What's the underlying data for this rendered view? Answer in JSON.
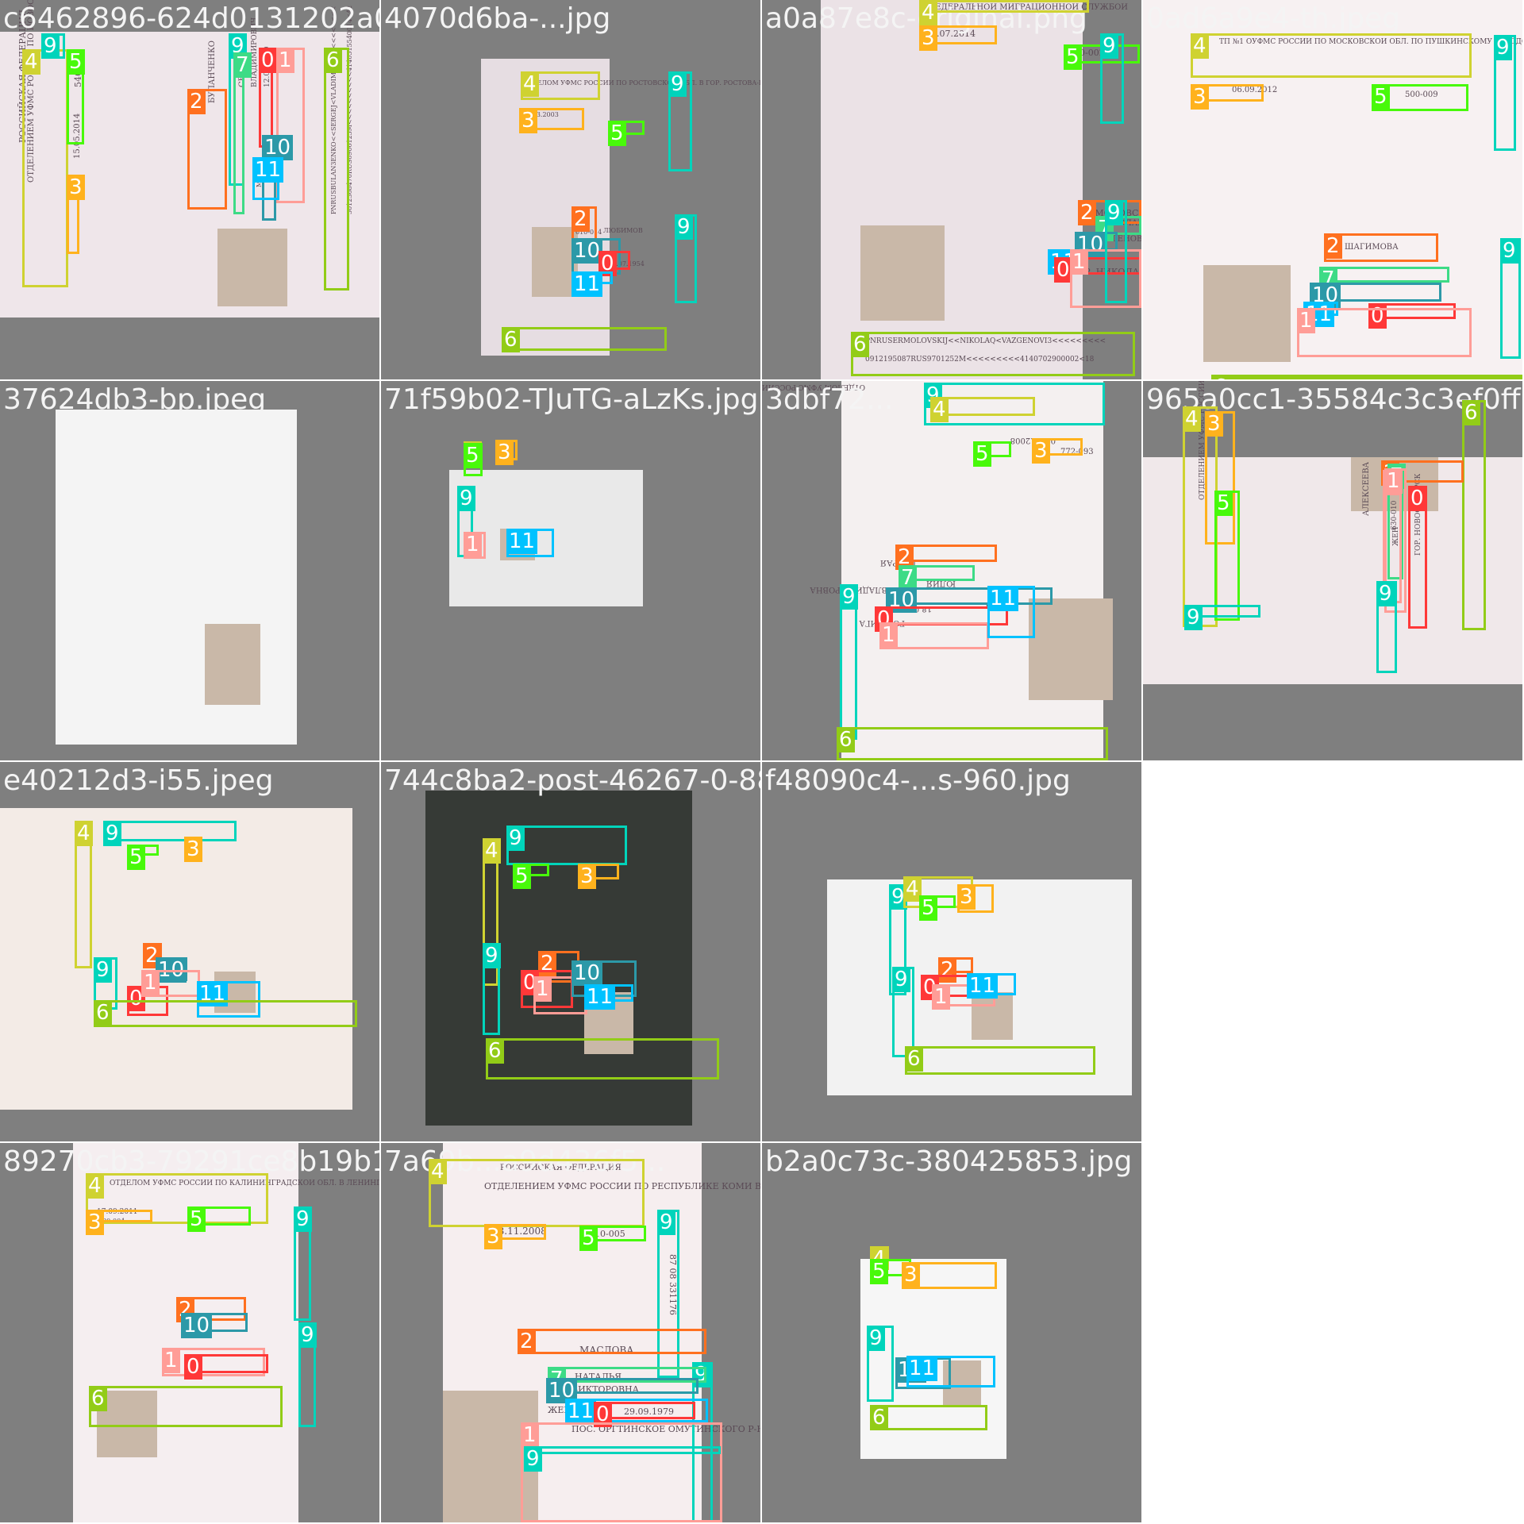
{
  "class_colors": {
    "0": "#ff3838",
    "1": "#ff9d97",
    "2": "#ff701f",
    "3": "#ffb21d",
    "4": "#cfd231",
    "5": "#48f90a",
    "6": "#92cc17",
    "7": "#3ddb86",
    "9": "#00d4bb",
    "10": "#2c99a8",
    "11": "#00c2ff"
  },
  "tiles": [
    {
      "filename": "c6462896-624d0131202a03447067e13e26250083.jpg",
      "doc_text": [
        "РОССИЙСКАЯ ФЕДЕРАЦИЯ",
        "ОТДЕЛЕНИЕМ УФМС РОССИИ ПО НОВОСИБИРСКОЙ ОБЛАСТИ В ГОРОДЕ БЕРДСКЕ",
        "15.05.2014",
        "540-014",
        "БУЛАНЧЕНКО",
        "СЕРГЕЙ",
        "ВЛАДИМИРОВИЧ",
        "12.06.1969",
        "МУЖ.",
        "PNRUSBULAN3ENKO<<SERGEJ<VLADIMIROVI3<<<<<<<<",
        "5012368470RUS6906125M<<<<<<<<<<4140515540014<42"
      ],
      "boxes": [
        {
          "cls": "4",
          "label": "4"
        },
        {
          "cls": "9",
          "label": "9"
        },
        {
          "cls": "5",
          "label": "5"
        },
        {
          "cls": "3",
          "label": "3"
        },
        {
          "cls": "2",
          "label": "2"
        },
        {
          "cls": "9",
          "label": "9"
        },
        {
          "cls": "7",
          "label": "7"
        },
        {
          "cls": "0",
          "label": "0"
        },
        {
          "cls": "1",
          "label": "1"
        },
        {
          "cls": "10",
          "label": "10"
        },
        {
          "cls": "11",
          "label": "11"
        },
        {
          "cls": "6",
          "label": "6"
        }
      ]
    },
    {
      "filename": "4070d6ba-...jpg",
      "doc_text": [
        "ОТДЕЛОМ УФМС РОССИИ ПО РОСТОВСКОЙ ОБЛ. В ГОР. РОСТОВА-НА-ДОНУ",
        "24.03.2003",
        "610-014",
        "ЛЮБИМОВ",
        "10.07.1954"
      ],
      "boxes": [
        {
          "cls": "4",
          "label": "4"
        },
        {
          "cls": "3",
          "label": "3"
        },
        {
          "cls": "5",
          "label": "5"
        },
        {
          "cls": "9",
          "label": "9"
        },
        {
          "cls": "2",
          "label": "2"
        },
        {
          "cls": "9",
          "label": "9"
        },
        {
          "cls": "10",
          "label": "10"
        },
        {
          "cls": "0",
          "label": "0"
        },
        {
          "cls": "11",
          "label": "11"
        },
        {
          "cls": "6",
          "label": "6"
        }
      ]
    },
    {
      "filename": "a0a87e8c-original.png",
      "doc_text": [
        "ФЕДЕРАЛЬНОЙ МИГРАЦИОННОЙ СЛУЖБОЙ",
        "02.07.2014",
        "900-002",
        "ЕРМОЛОВСКИЙ",
        "НИКОЛАЙ",
        "ВАЗГЕНОВИЧ",
        "МУЖ.",
        "ГОР. НИКОЛАЕВ НИКОЛАЕВСКОЙ ОБЛ.",
        "PNRUSERMOLOVSKIJ<<NIKOLAQ<VAZGENOVI3<<<<<<<<<",
        "0912195087RUS9701252M<<<<<<<<<4140702900002<18"
      ],
      "boxes": [
        {
          "cls": "4",
          "label": "4"
        },
        {
          "cls": "3",
          "label": "3"
        },
        {
          "cls": "5",
          "label": "5"
        },
        {
          "cls": "9",
          "label": "9"
        },
        {
          "cls": "2",
          "label": "2"
        },
        {
          "cls": "7",
          "label": "7"
        },
        {
          "cls": "10",
          "label": "10"
        },
        {
          "cls": "11",
          "label": "11"
        },
        {
          "cls": "0",
          "label": "0"
        },
        {
          "cls": "1",
          "label": "1"
        },
        {
          "cls": "9",
          "label": "9"
        },
        {
          "cls": "6",
          "label": "6"
        }
      ]
    },
    {
      "filename": "0ad6a9e4-th.jpeg",
      "doc_text": [
        "ТП №1 ОУФМС РОССИИ ПО МОСКОВСКОЙ ОБЛ. ПО ПУШКИНСКОМУ ГОРОДСКОМУ",
        "06.09.2012",
        "500-009",
        "ШАГИМОВА"
      ],
      "boxes": [
        {
          "cls": "4",
          "label": "4"
        },
        {
          "cls": "3",
          "label": "3"
        },
        {
          "cls": "5",
          "label": "5"
        },
        {
          "cls": "9",
          "label": "9"
        },
        {
          "cls": "2",
          "label": "2"
        },
        {
          "cls": "7",
          "label": "7"
        },
        {
          "cls": "10",
          "label": "10"
        },
        {
          "cls": "11",
          "label": "11"
        },
        {
          "cls": "0",
          "label": "0"
        },
        {
          "cls": "1",
          "label": "1"
        },
        {
          "cls": "9",
          "label": "9"
        },
        {
          "cls": "6",
          "label": "6"
        }
      ]
    },
    {
      "filename": "37624db3-bp.jpeg",
      "doc_text": [],
      "boxes": [
        {
          "cls": "9",
          "label": "9"
        },
        {
          "cls": "4",
          "label": "4"
        },
        {
          "cls": "5",
          "label": "5"
        },
        {
          "cls": "3",
          "label": "3"
        },
        {
          "cls": "2",
          "label": "2"
        },
        {
          "cls": "9",
          "label": "9"
        },
        {
          "cls": "7",
          "label": "7"
        },
        {
          "cls": "0",
          "label": "0"
        },
        {
          "cls": "1",
          "label": "1"
        },
        {
          "cls": "11",
          "label": "11"
        },
        {
          "cls": "6",
          "label": "6"
        }
      ]
    },
    {
      "filename": "71f59b02-TJuTG-aLzKs.jpg",
      "doc_text": [],
      "boxes": [
        {
          "cls": "4",
          "label": "4"
        },
        {
          "cls": "5",
          "label": "5"
        },
        {
          "cls": "3",
          "label": "3"
        },
        {
          "cls": "9",
          "label": "9"
        },
        {
          "cls": "1",
          "label": "1"
        },
        {
          "cls": "11",
          "label": "11"
        }
      ]
    },
    {
      "filename": "3dbf72...",
      "doc_text": [
        "ОТДЕЛОМ УФМС РОССИИ ПО НОВОСИБИРСКОЙ ОБЛ.",
        "07.02.2008",
        "772-093",
        "ПЕТРАЯ",
        "ЮЛИЯ",
        "ВЛАДИМИРОВНА",
        "ЖЕН",
        "18.04.1977",
        "ГОР. РИГА"
      ],
      "boxes": [
        {
          "cls": "9",
          "label": "9"
        },
        {
          "cls": "4",
          "label": "4"
        },
        {
          "cls": "5",
          "label": "5"
        },
        {
          "cls": "3",
          "label": "3"
        },
        {
          "cls": "2",
          "label": "2"
        },
        {
          "cls": "7",
          "label": "7"
        },
        {
          "cls": "9",
          "label": "9"
        },
        {
          "cls": "10",
          "label": "10"
        },
        {
          "cls": "0",
          "label": "0"
        },
        {
          "cls": "1",
          "label": "1"
        },
        {
          "cls": "11",
          "label": "11"
        },
        {
          "cls": "6",
          "label": "6"
        }
      ]
    },
    {
      "filename": "965a0cc1-35584c3c3ef0ff72...",
      "doc_text": [
        "ОТДЕЛЕНИЕМ УФМС РОССИИ ПО САМАРСКОЙ ОБЛАСТИ",
        "630-010",
        "АЛЕКСЕЕВА",
        "ЖЕН",
        "ГОР. НОВОСИБИРСК"
      ],
      "boxes": [
        {
          "cls": "4",
          "label": "4"
        },
        {
          "cls": "3",
          "label": "3"
        },
        {
          "cls": "6",
          "label": "6"
        },
        {
          "cls": "2",
          "label": "2"
        },
        {
          "cls": "5",
          "label": "5"
        },
        {
          "cls": "7",
          "label": "7"
        },
        {
          "cls": "1",
          "label": "1"
        },
        {
          "cls": "1",
          "label": "1"
        },
        {
          "cls": "0",
          "label": "0"
        },
        {
          "cls": "9",
          "label": "9"
        },
        {
          "cls": "9",
          "label": "9"
        }
      ]
    },
    {
      "filename": "e40212d3-i55.jpeg",
      "doc_text": [],
      "boxes": [
        {
          "cls": "4",
          "label": "4"
        },
        {
          "cls": "9",
          "label": "9"
        },
        {
          "cls": "5",
          "label": "5"
        },
        {
          "cls": "3",
          "label": "3"
        },
        {
          "cls": "2",
          "label": "2"
        },
        {
          "cls": "9",
          "label": "9"
        },
        {
          "cls": "10",
          "label": "10"
        },
        {
          "cls": "0",
          "label": "0"
        },
        {
          "cls": "1",
          "label": "1"
        },
        {
          "cls": "11",
          "label": "11"
        },
        {
          "cls": "6",
          "label": "6"
        }
      ]
    },
    {
      "filename": "744c8ba2-post-46267-0-887...",
      "doc_text": [],
      "boxes": [
        {
          "cls": "4",
          "label": "4"
        },
        {
          "cls": "9",
          "label": "9"
        },
        {
          "cls": "5",
          "label": "5"
        },
        {
          "cls": "3",
          "label": "3"
        },
        {
          "cls": "2",
          "label": "2"
        },
        {
          "cls": "9",
          "label": "9"
        },
        {
          "cls": "0",
          "label": "0"
        },
        {
          "cls": "1",
          "label": "1"
        },
        {
          "cls": "10",
          "label": "10"
        },
        {
          "cls": "11",
          "label": "11"
        },
        {
          "cls": "6",
          "label": "6"
        }
      ]
    },
    {
      "filename": "f48090c4-...s-960.jpg",
      "doc_text": [],
      "boxes": [
        {
          "cls": "9",
          "label": "9"
        },
        {
          "cls": "4",
          "label": "4"
        },
        {
          "cls": "5",
          "label": "5"
        },
        {
          "cls": "3",
          "label": "3"
        },
        {
          "cls": "2",
          "label": "2"
        },
        {
          "cls": "9",
          "label": "9"
        },
        {
          "cls": "0",
          "label": "0"
        },
        {
          "cls": "1",
          "label": "1"
        },
        {
          "cls": "11",
          "label": "11"
        },
        {
          "cls": "6",
          "label": "6"
        }
      ]
    },
    {
      "filename": "",
      "doc_text": [],
      "boxes": []
    },
    {
      "filename": "89270cb3-79291ce8b19b16...",
      "doc_text": [
        "ОТДЕЛОМ УФМС РОССИИ ПО КАЛИНИНГРАДСКОЙ ОБЛ. В ЛЕНИНГРАДСКОМ Р-НЕ ГОР. КАЛИНИНГРАДА",
        "17.09.2011",
        "390-004"
      ],
      "boxes": [
        {
          "cls": "4",
          "label": "4"
        },
        {
          "cls": "3",
          "label": "3"
        },
        {
          "cls": "5",
          "label": "5"
        },
        {
          "cls": "9",
          "label": "9"
        },
        {
          "cls": "2",
          "label": "2"
        },
        {
          "cls": "10",
          "label": "10"
        },
        {
          "cls": "9",
          "label": "9"
        },
        {
          "cls": "1",
          "label": "1"
        },
        {
          "cls": "0",
          "label": "0"
        },
        {
          "cls": "6",
          "label": "6"
        }
      ]
    },
    {
      "filename": "7a69b...a9d436f5...",
      "doc_text": [
        "РОССИЙСКАЯ ФЕДЕРАЦИЯ",
        "ОТДЕЛЕНИЕМ УФМС РОССИИ ПО РЕСПУБЛИКЕ КОМИ В ГОРОДЕ ИНТЕ",
        "28.11.2008",
        "110-005",
        "87 08 331176",
        "МАСЛОВА",
        "НАТАЛЬЯ",
        "ВИКТОРОВНА",
        "ЖЕН.",
        "29.09.1979",
        "ПОС. ОРГТИНСКОЕ ОМУТИНСКОГО Р-НА ТЮМЕНСКОЙ ОБЛ."
      ],
      "boxes": [
        {
          "cls": "4",
          "label": "4"
        },
        {
          "cls": "3",
          "label": "3"
        },
        {
          "cls": "5",
          "label": "5"
        },
        {
          "cls": "9",
          "label": "9"
        },
        {
          "cls": "2",
          "label": "2"
        },
        {
          "cls": "9",
          "label": "9"
        },
        {
          "cls": "7",
          "label": "7"
        },
        {
          "cls": "10",
          "label": "10"
        },
        {
          "cls": "11",
          "label": "11"
        },
        {
          "cls": "0",
          "label": "0"
        },
        {
          "cls": "1",
          "label": "1"
        },
        {
          "cls": "9",
          "label": "9"
        }
      ]
    },
    {
      "filename": "b2a0c73c-380425853.jpg",
      "doc_text": [],
      "boxes": [
        {
          "cls": "4",
          "label": "4"
        },
        {
          "cls": "5",
          "label": "5"
        },
        {
          "cls": "3",
          "label": "3"
        },
        {
          "cls": "9",
          "label": "9"
        },
        {
          "cls": "10",
          "label": "10"
        },
        {
          "cls": "11",
          "label": "11"
        },
        {
          "cls": "6",
          "label": "6"
        }
      ]
    },
    {
      "filename": "",
      "doc_text": [],
      "boxes": []
    }
  ]
}
